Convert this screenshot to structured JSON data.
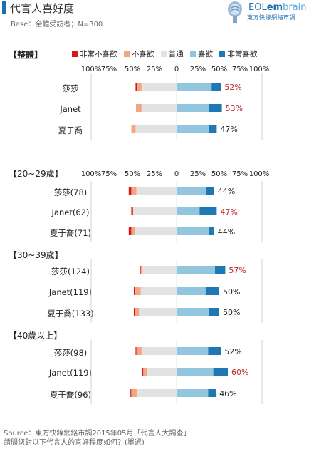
{
  "header": {
    "title": "代言人喜好度",
    "base": "Base：全體受訪者；N=300",
    "logo_word_prefix": "EOL",
    "logo_word_em": "em",
    "logo_word_suffix": "brain",
    "logo_sub": "東方快線網絡市調"
  },
  "source": {
    "line1": "Source：東方快線網絡市調2015年05月「代言人大調查」",
    "line2": "請問您對以下代言人的喜好程度如何？(單選)"
  },
  "colors": {
    "very_dislike": "#d7191c",
    "dislike": "#f4a582",
    "neutral": "#e2e2e2",
    "like": "#92c5de",
    "very_like": "#1f78b4",
    "highlight_text": "#c0272d",
    "normal_text": "#222222"
  },
  "chart_data": {
    "type": "bar",
    "stacking": "diverging",
    "axis_ticks": [
      "100%",
      "75%",
      "50%",
      "25%",
      "0",
      "25%",
      "50%",
      "75%",
      "100%"
    ],
    "legend": [
      "非常不喜歡",
      "不喜歡",
      "普通",
      "喜歡",
      "非常喜歡"
    ],
    "groups": [
      {
        "name": "【整體】",
        "rows": [
          {
            "label": "莎莎",
            "very_dislike": 2,
            "dislike": 5,
            "neutral": 41,
            "like": 41,
            "very_like": 11,
            "total_like_label": "52%",
            "highlight": true
          },
          {
            "label": "Janet",
            "very_dislike": 1,
            "dislike": 5,
            "neutral": 41,
            "like": 38,
            "very_like": 15,
            "total_like_label": "53%",
            "highlight": true
          },
          {
            "label": "夏于喬",
            "very_dislike": 0,
            "dislike": 5,
            "neutral": 48,
            "like": 38,
            "very_like": 9,
            "total_like_label": "47%",
            "highlight": false
          }
        ]
      },
      {
        "name": "【20~29歲】",
        "rows": [
          {
            "label": "莎莎(78)",
            "very_dislike": 3,
            "dislike": 6,
            "neutral": 47,
            "like": 35,
            "very_like": 9,
            "total_like_label": "44%",
            "highlight": false
          },
          {
            "label": "Janet(62)",
            "very_dislike": 2,
            "dislike": 0,
            "neutral": 51,
            "like": 27,
            "very_like": 20,
            "total_like_label": "47%",
            "highlight": true
          },
          {
            "label": "夏于喬(71)",
            "very_dislike": 3,
            "dislike": 4,
            "neutral": 49,
            "like": 38,
            "very_like": 6,
            "total_like_label": "44%",
            "highlight": false
          }
        ]
      },
      {
        "name": "【30~39歲】",
        "rows": [
          {
            "label": "莎莎(124)",
            "very_dislike": 1,
            "dislike": 2,
            "neutral": 40,
            "like": 45,
            "very_like": 12,
            "total_like_label": "57%",
            "highlight": true
          },
          {
            "label": "Janet(119)",
            "very_dislike": 1,
            "dislike": 7,
            "neutral": 42,
            "like": 34,
            "very_like": 16,
            "total_like_label": "50%",
            "highlight": false
          },
          {
            "label": "夏于喬(133)",
            "very_dislike": 1,
            "dislike": 5,
            "neutral": 44,
            "like": 38,
            "very_like": 12,
            "total_like_label": "50%",
            "highlight": false
          }
        ]
      },
      {
        "name": "【40歲以上】",
        "rows": [
          {
            "label": "莎莎(98)",
            "very_dislike": 1,
            "dislike": 6,
            "neutral": 41,
            "like": 37,
            "very_like": 15,
            "total_like_label": "52%",
            "highlight": false
          },
          {
            "label": "Janet(119)",
            "very_dislike": 1,
            "dislike": 4,
            "neutral": 35,
            "like": 43,
            "very_like": 17,
            "total_like_label": "60%",
            "highlight": true
          },
          {
            "label": "夏于喬(96)",
            "very_dislike": 1,
            "dislike": 7,
            "neutral": 46,
            "like": 37,
            "very_like": 9,
            "total_like_label": "46%",
            "highlight": false
          }
        ]
      }
    ]
  }
}
